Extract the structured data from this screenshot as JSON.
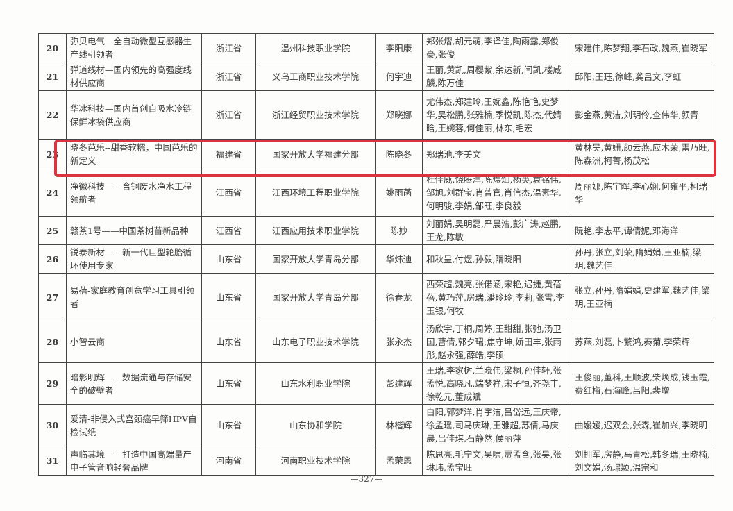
{
  "highlight_color": "#d9343f",
  "rows": [
    {
      "no": "20",
      "project": "弥贝电气—全自动微型互感器生产线引领者",
      "province": "浙江省",
      "school": "温州科技职业学院",
      "leader": "李阳康",
      "members": "郑张熠,胡元萌,李译佳,陶雨露,郑俊豪,张俊",
      "advisors": "宋建伟,陈梦翔,李石政,魏燕,崔晓军"
    },
    {
      "no": "21",
      "project": "弹道线材—国内领先的高强度线材供应商",
      "province": "浙江省",
      "school": "义乌工商职业技术学院",
      "leader": "何宇迪",
      "members": "王丽,黄凯,周樱紫,余达新,闫凯,楼威麟,陈万佳",
      "advisors": "邱阳,王珏,徐峰,龚吕文,李虹"
    },
    {
      "no": "22",
      "project": "华冰科技—国内首创自吸水冷链保鲜冰袋供应商",
      "province": "浙江省",
      "school": "浙江经贸职业技术学院",
      "leader": "郑晓娜",
      "members": "尤伟杰,郑建玲,王婉鑫,陈艳艳,史梦华,吴松鹏,张雅楠,季悦凯,陈杰,代婧晗,王婉蓉,何佳丽,林东,毛宏",
      "advisors": "彭金燕,黄洁,刘玥伶,查伟华,颜青"
    },
    {
      "no": "23",
      "project": "晓冬芭乐--甜香软糯，中国芭乐的新定义",
      "province": "福建省",
      "school": "国家开放大学福建分部",
      "leader": "陈晓冬",
      "members": "郑瑞池,李美文",
      "advisors": "黄林昊,黄姗,颜云燕,应木荣,雷乃旺,陈森洲,柯菁,杨茂松"
    },
    {
      "no": "24",
      "project": "净徽科技——含铜废水净水工程领航者",
      "province": "江西省",
      "school": "江西环境工程职业学院",
      "leader": "姚雨菡",
      "members": "杜佳威,饶腾洋,陈煜灿,杨英,袁铭伟,邹旭,刘群宝,肖曾官,肖信杰,温素华,何明骏,李娟,邹旺,李良毅",
      "advisors": "周丽娜,陈宇晖,李心娴,何雍平,柯瑞华"
    },
    {
      "no": "25",
      "project": "赣茶1号——中国茶树苗新品种",
      "province": "江西省",
      "school": "江西应用技术职业学院",
      "leader": "陈妙",
      "members": "刘丽娟,吴明磊,严晨浩,彭广涛,赵鹏,王龙,陈敏",
      "advisors": "阮艳,李志平,谭倩妮,邓海洋"
    },
    {
      "no": "26",
      "project": "锐泰新材——新一代巨型轮胎循环使用专家",
      "province": "山东省",
      "school": "国家开放大学青岛分部",
      "leader": "华炜迪",
      "members": "和秋呈,付煜,孙毅,隋晓阳",
      "advisors": "孙丹,张立,刘荣,隋娟娟,王亚楠,梁玥,魏艺佳"
    },
    {
      "no": "27",
      "project": "易蓓-家庭教育创意学习工具引领者",
      "province": "山东省",
      "school": "国家开放大学青岛分部",
      "leader": "徐春龙",
      "members": "西荣超,魏亮,张偌涵,宋艳,迟捷,黄蓓蓓,黄巧萍,房瑞,潘玲玲,李莉,张雪,李玉银,何牧",
      "advisors": "张立,孙丹,隋娟娟,史建军,魏艺佳,梁玥,王亚楠"
    },
    {
      "no": "28",
      "project": "小智云商",
      "province": "山东省",
      "school": "山东电子职业技术学院",
      "leader": "张永杰",
      "members": "汤欣宇,丁桐,周婷,王甜甜,张弛,汤卫国,曹倩,郭夕珺,焦守坤,娇田丰,张雨彤,赵永强,薛皓,李硕",
      "advisors": "苏燕,刘磊,卜繁鸿,秦菊,李荣辉"
    },
    {
      "no": "29",
      "project": "暗影明辉——数据流通与存储安全的破壁者",
      "province": "山东省",
      "school": "山东水利职业学院",
      "leader": "彭建辉",
      "members": "王瑞,李家树,兰晓伟,梁桐,孙佳轩,张孟悦,高晓凡,端梦祥,宋子恒,齐尧丰,徐乾元,董成斌",
      "advisors": "王俊丽,董科,王顺波,柴焕成,钱玉霞,费红梅,石海峰,吕阳,裴增"
    },
    {
      "no": "30",
      "project": "爱清-非侵入式宫颈癌早筛HPV自检试纸",
      "province": "山东省",
      "school": "山东协和学院",
      "leader": "林楷辉",
      "members": "白阳,郭梦洋,肖宇洁,吕岱远,王庆帝,徐孟瑶,司马庆琳,王雅超,苏倩,马庆晨,吕佳琪,石静然,侯丽萍",
      "advisors": "曲媛媛,迟双会,张森,崔加兴,李晓明"
    },
    {
      "no": "31",
      "project": "声临其境——打造中国高端量产电子管音响轻奢品牌",
      "province": "河南省",
      "school": "河南职业技术学院",
      "leader": "孟荣恩",
      "members": "陈思亮,毛宁文,吴啸,贾孟含,张昊,张琳玮,孟宝旺",
      "advisors": "刘拥军,房静,马青松,韩冬瑞,王晓楠,刘文娟,汤璟颖,温宗和"
    }
  ],
  "page_number": "—327—"
}
